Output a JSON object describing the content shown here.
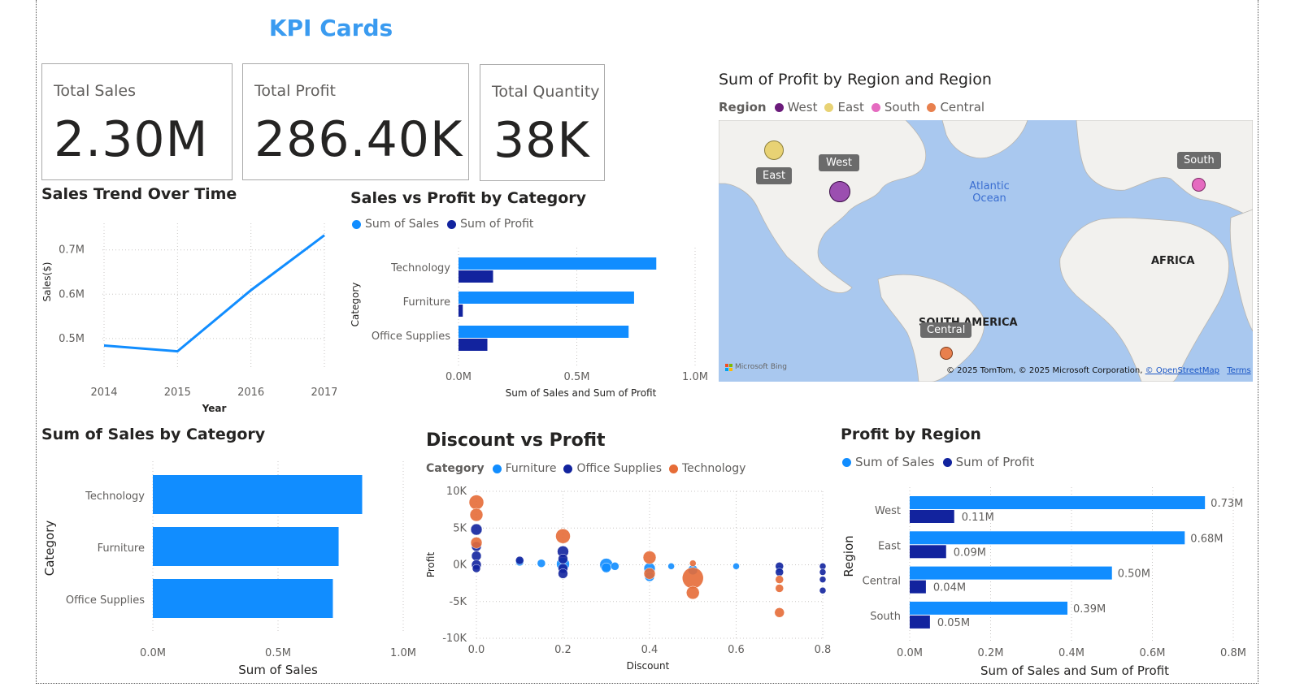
{
  "page_title": "KPI Cards",
  "kpis": [
    {
      "label": "Total Sales",
      "value": "2.30M"
    },
    {
      "label": "Total Profit",
      "value": "286.40K"
    },
    {
      "label": "Total Quantity",
      "value": "38K"
    }
  ],
  "map": {
    "title": "Sum of Profit by Region and Region",
    "legend_title": "Region",
    "legend": [
      {
        "name": "West",
        "color": "#6b1b7b"
      },
      {
        "name": "East",
        "color": "#e8d274"
      },
      {
        "name": "South",
        "color": "#e56bc0"
      },
      {
        "name": "Central",
        "color": "#e8804e"
      }
    ],
    "labels": {
      "ocean": "Atlantic Ocean",
      "ocean_1": "Atlantic",
      "ocean_2": "Ocean",
      "continent_1": "AFRICA",
      "continent_2": "SOUTH AMERICA"
    },
    "bubbles": [
      {
        "region": "East",
        "label": "East",
        "color": "#e8d274"
      },
      {
        "region": "West",
        "label": "West",
        "color": "#9b4fb0"
      },
      {
        "region": "South",
        "label": "South",
        "color": "#e56bc0"
      },
      {
        "region": "Central",
        "label": "Central",
        "color": "#e8804e"
      }
    ],
    "bing_label": "Microsoft Bing",
    "copyright": "© 2025 TomTom, © 2025 Microsoft Corporation,",
    "osm_link": "© OpenStreetMap",
    "terms_link": "Terms"
  },
  "chart_data": [
    {
      "type": "line",
      "title": "Sales Trend Over Time",
      "xlabel": "Year",
      "ylabel": "Sales($)",
      "x": [
        "2014",
        "2015",
        "2016",
        "2017"
      ],
      "y": [
        0.484,
        0.471,
        0.609,
        0.733
      ],
      "ylim": [
        0.43,
        0.76
      ],
      "yticks": [
        0.5,
        0.6,
        0.7
      ],
      "ytick_labels": [
        "0.5M",
        "0.6M",
        "0.7M"
      ],
      "color": "#118dff"
    },
    {
      "type": "bar",
      "orientation": "horizontal",
      "title": "Sales vs Profit by Category",
      "xlabel": "Sum of Sales and Sum of Profit",
      "ylabel": "Category",
      "categories": [
        "Technology",
        "Furniture",
        "Office Supplies"
      ],
      "series": [
        {
          "name": "Sum of Sales",
          "color": "#118dff",
          "values": [
            0.836,
            0.742,
            0.719
          ]
        },
        {
          "name": "Sum of Profit",
          "color": "#12239e",
          "values": [
            0.146,
            0.018,
            0.122
          ]
        }
      ],
      "xlim": [
        0,
        1.0
      ],
      "xticks": [
        0,
        0.5,
        1.0
      ],
      "xtick_labels": [
        "0.0M",
        "0.5M",
        "1.0M"
      ]
    },
    {
      "type": "bar",
      "orientation": "horizontal",
      "title": "Sum of Sales by Category",
      "xlabel": "Sum of Sales",
      "ylabel": "Category",
      "categories": [
        "Technology",
        "Furniture",
        "Office Supplies"
      ],
      "values": [
        0.836,
        0.742,
        0.719
      ],
      "color": "#118dff",
      "xlim": [
        0,
        1.0
      ],
      "xticks": [
        0,
        0.5,
        1.0
      ],
      "xtick_labels": [
        "0.0M",
        "0.5M",
        "1.0M"
      ]
    },
    {
      "type": "scatter",
      "title": "Discount vs Profit",
      "xlabel": "Discount",
      "ylabel": "Profit",
      "legend_title": "Category",
      "xlim": [
        0,
        0.8
      ],
      "ylim": [
        -10000,
        10000
      ],
      "xticks": [
        0,
        0.2,
        0.4,
        0.6,
        0.8
      ],
      "xtick_labels": [
        "0.0",
        "0.2",
        "0.4",
        "0.6",
        "0.8"
      ],
      "yticks": [
        -10000,
        -5000,
        0,
        5000,
        10000
      ],
      "ytick_labels": [
        "-10K",
        "-5K",
        "0K",
        "5K",
        "10K"
      ],
      "series": [
        {
          "name": "Furniture",
          "color": "#118dff",
          "points": [
            [
              0.1,
              400,
              5
            ],
            [
              0.15,
              200,
              5
            ],
            [
              0.2,
              100,
              8
            ],
            [
              0.3,
              0,
              8
            ],
            [
              0.3,
              -400,
              6
            ],
            [
              0.32,
              -200,
              5
            ],
            [
              0.4,
              -500,
              7
            ],
            [
              0.4,
              -1600,
              6
            ],
            [
              0.45,
              -200,
              4
            ],
            [
              0.5,
              -700,
              6
            ],
            [
              0.6,
              -200,
              4
            ],
            [
              0.7,
              -600,
              4
            ]
          ]
        },
        {
          "name": "Office Supplies",
          "color": "#12239e",
          "points": [
            [
              0.0,
              4800,
              7
            ],
            [
              0.0,
              2500,
              6
            ],
            [
              0.0,
              1200,
              6
            ],
            [
              0.0,
              0,
              6
            ],
            [
              0.0,
              -500,
              5
            ],
            [
              0.1,
              600,
              5
            ],
            [
              0.2,
              1800,
              7
            ],
            [
              0.2,
              800,
              6
            ],
            [
              0.2,
              -500,
              6
            ],
            [
              0.2,
              -1200,
              6
            ],
            [
              0.7,
              -200,
              5
            ],
            [
              0.7,
              -1000,
              5
            ],
            [
              0.8,
              -200,
              4
            ],
            [
              0.8,
              -1000,
              4
            ],
            [
              0.8,
              -2000,
              4
            ],
            [
              0.8,
              -3500,
              4
            ]
          ]
        },
        {
          "name": "Technology",
          "color": "#e66c37",
          "points": [
            [
              0.0,
              8500,
              9
            ],
            [
              0.0,
              6800,
              8
            ],
            [
              0.0,
              3000,
              7
            ],
            [
              0.2,
              3900,
              9
            ],
            [
              0.4,
              1000,
              8
            ],
            [
              0.4,
              -1200,
              7
            ],
            [
              0.5,
              -1800,
              13
            ],
            [
              0.5,
              -3800,
              8
            ],
            [
              0.5,
              200,
              4
            ],
            [
              0.7,
              -2000,
              5
            ],
            [
              0.7,
              -3200,
              5
            ],
            [
              0.7,
              -6500,
              6
            ]
          ]
        }
      ]
    },
    {
      "type": "bar",
      "orientation": "horizontal",
      "title": "Profit by Region",
      "xlabel": "Sum of Sales and Sum of Profit",
      "ylabel": "Region",
      "categories": [
        "West",
        "East",
        "Central",
        "South"
      ],
      "series": [
        {
          "name": "Sum of Sales",
          "color": "#118dff",
          "values": [
            0.73,
            0.68,
            0.5,
            0.39
          ],
          "labels": [
            "0.73M",
            "0.68M",
            "0.50M",
            "0.39M"
          ]
        },
        {
          "name": "Sum of Profit",
          "color": "#12239e",
          "values": [
            0.11,
            0.09,
            0.04,
            0.05
          ],
          "labels": [
            "0.11M",
            "0.09M",
            "0.04M",
            "0.05M"
          ]
        }
      ],
      "xlim": [
        0,
        0.8
      ],
      "xticks": [
        0,
        0.2,
        0.4,
        0.6,
        0.8
      ],
      "xtick_labels": [
        "0.0M",
        "0.2M",
        "0.4M",
        "0.6M",
        "0.8M"
      ]
    }
  ]
}
